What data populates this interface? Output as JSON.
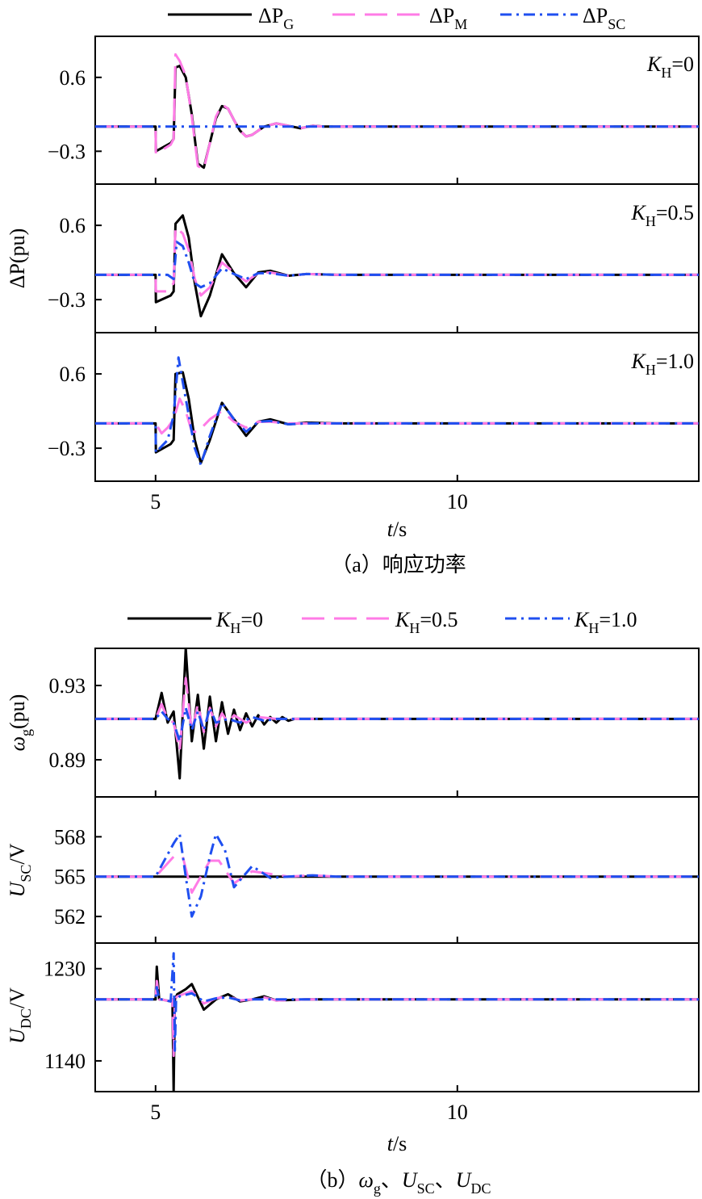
{
  "figure_a": {
    "caption": "（a）响应功率",
    "xlabel": "t/s",
    "ylabel": "ΔP(pu)",
    "legend": [
      {
        "name": "ΔP_G",
        "color": "#000000",
        "dash": "solid"
      },
      {
        "name": "ΔP_M",
        "color": "#ff7be6",
        "dash": "dash"
      },
      {
        "name": "ΔP_SC",
        "color": "#1f4ff0",
        "dash": "dashdot"
      }
    ],
    "panels": [
      {
        "annotation": "K_H=0",
        "yticks": [
          "0.6",
          "−0.3"
        ]
      },
      {
        "annotation": "K_H=0.5",
        "yticks": [
          "0.6",
          "−0.3"
        ]
      },
      {
        "annotation": "K_H=1.0",
        "yticks": [
          "0.6",
          "−0.3"
        ]
      }
    ],
    "xticks": [
      "5",
      "10"
    ]
  },
  "figure_b": {
    "caption": "（b）ω_g、U_SC、U_DC",
    "xlabel": "t/s",
    "legend": [
      {
        "name": "K_H=0",
        "color": "#000000",
        "dash": "solid"
      },
      {
        "name": "K_H=0.5",
        "color": "#ff7be6",
        "dash": "dash"
      },
      {
        "name": "K_H=1.0",
        "color": "#1f4ff0",
        "dash": "dashdot"
      }
    ],
    "panels": [
      {
        "ylabel": "ω_g(pu)",
        "yticks": [
          "0.93",
          "0.89"
        ]
      },
      {
        "ylabel": "U_SC/V",
        "yticks": [
          "568",
          "565",
          "562"
        ]
      },
      {
        "ylabel": "U_DC/V",
        "yticks": [
          "1230",
          "1140"
        ]
      }
    ],
    "xticks": [
      "5",
      "10"
    ]
  },
  "chart_data": [
    {
      "type": "line",
      "xlim": [
        4,
        14
      ],
      "xlabel": "t/s",
      "ylabel": "ΔP(pu)",
      "subplots": [
        {
          "annotation": "K_H=0",
          "ylim": [
            -0.7,
            1.1
          ],
          "series": [
            {
              "name": "ΔP_G",
              "x": [
                4,
                5,
                5.005,
                5.25,
                5.3,
                5.33,
                5.4,
                5.5,
                5.6,
                5.7,
                5.8,
                5.9,
                6.0,
                6.1,
                6.2,
                6.3,
                6.4,
                6.5,
                6.6,
                6.8,
                7.0,
                7.2,
                7.4,
                7.6,
                7.8,
                8,
                9,
                14
              ],
              "y": [
                0,
                0,
                -0.3,
                -0.2,
                -0.15,
                0.72,
                0.74,
                0.6,
                0.15,
                -0.45,
                -0.5,
                -0.2,
                0.1,
                0.25,
                0.22,
                0.08,
                -0.05,
                -0.12,
                -0.1,
                0,
                0.04,
                0.01,
                -0.02,
                0.01,
                0,
                0,
                0,
                0
              ]
            },
            {
              "name": "ΔP_M",
              "x": [
                4,
                5,
                5.005,
                5.25,
                5.3,
                5.33,
                5.4,
                5.5,
                5.6,
                5.7,
                5.8,
                5.9,
                6.0,
                6.1,
                6.2,
                6.3,
                6.4,
                6.5,
                6.6,
                6.8,
                7.0,
                7.2,
                7.4,
                7.6,
                7.8,
                8,
                9,
                14
              ],
              "y": [
                0,
                0,
                -0.33,
                -0.22,
                -0.15,
                0.88,
                0.8,
                0.62,
                0.12,
                -0.48,
                -0.52,
                -0.2,
                0.12,
                0.27,
                0.22,
                0.08,
                -0.05,
                -0.12,
                -0.1,
                0,
                0.04,
                0.01,
                -0.02,
                0.01,
                0,
                0,
                0,
                0
              ]
            },
            {
              "name": "ΔP_SC",
              "x": [
                4,
                6,
                7,
                8,
                9,
                14
              ],
              "y": [
                0,
                0,
                0,
                0,
                0,
                0
              ]
            }
          ]
        },
        {
          "annotation": "K_H=0.5",
          "ylim": [
            -0.7,
            1.1
          ],
          "series": [
            {
              "name": "ΔP_G",
              "x": [
                4,
                5,
                5.005,
                5.25,
                5.3,
                5.33,
                5.45,
                5.55,
                5.65,
                5.75,
                5.9,
                6.1,
                6.3,
                6.5,
                6.7,
                6.9,
                7.2,
                7.5,
                8,
                14
              ],
              "y": [
                0,
                0,
                -0.33,
                -0.25,
                -0.2,
                0.62,
                0.72,
                0.45,
                -0.1,
                -0.5,
                -0.25,
                0.25,
                0.02,
                -0.15,
                0.03,
                0.05,
                -0.01,
                0.01,
                0,
                0
              ]
            },
            {
              "name": "ΔP_M",
              "x": [
                4,
                5,
                5.005,
                5.2,
                5.3,
                5.33,
                5.45,
                5.55,
                5.65,
                5.75,
                5.9,
                6.1,
                6.3,
                6.5,
                6.7,
                6.9,
                7.2,
                7.5,
                8,
                14
              ],
              "y": [
                0,
                0,
                -0.2,
                -0.2,
                -0.1,
                0.58,
                0.5,
                0.3,
                -0.05,
                -0.25,
                -0.15,
                0.15,
                0.03,
                -0.08,
                0.02,
                0.03,
                -0.01,
                0.01,
                0,
                0
              ]
            },
            {
              "name": "ΔP_SC",
              "x": [
                4,
                5.2,
                5.3,
                5.35,
                5.45,
                5.55,
                5.65,
                5.75,
                5.9,
                6.1,
                6.3,
                6.5,
                6.7,
                6.9,
                7.2,
                7.5,
                8,
                14
              ],
              "y": [
                0,
                0,
                -0.05,
                0.4,
                0.35,
                0.15,
                -0.1,
                -0.15,
                -0.1,
                0.08,
                0.01,
                -0.05,
                0.02,
                0.02,
                -0.01,
                0.01,
                0,
                0
              ]
            }
          ]
        },
        {
          "annotation": "K_H=1.0",
          "ylim": [
            -0.7,
            1.1
          ],
          "series": [
            {
              "name": "ΔP_G",
              "x": [
                4,
                5,
                5.005,
                5.25,
                5.3,
                5.33,
                5.45,
                5.55,
                5.65,
                5.75,
                5.9,
                6.1,
                6.3,
                6.5,
                6.7,
                6.9,
                7.2,
                7.5,
                8,
                14
              ],
              "y": [
                0,
                0,
                -0.35,
                -0.25,
                -0.2,
                0.6,
                0.62,
                0.3,
                -0.2,
                -0.48,
                -0.2,
                0.25,
                0.05,
                -0.15,
                0.02,
                0.05,
                -0.01,
                0.01,
                0,
                0
              ]
            },
            {
              "name": "ΔP_M",
              "x": [
                4,
                5,
                5.1,
                5.2,
                5.3,
                5.4,
                5.5,
                5.6,
                5.7,
                5.9,
                6.1,
                6.3,
                6.5,
                6.7,
                6.9,
                7.2,
                7.5,
                8,
                14
              ],
              "y": [
                0,
                0,
                -0.12,
                -0.05,
                0.05,
                0.3,
                0.15,
                -0.1,
                -0.1,
                0.05,
                0.15,
                0.02,
                -0.05,
                0.02,
                0.02,
                0,
                0,
                0,
                0
              ]
            },
            {
              "name": "ΔP_SC",
              "x": [
                4,
                5,
                5.005,
                5.2,
                5.3,
                5.38,
                5.45,
                5.55,
                5.65,
                5.75,
                5.9,
                6.1,
                6.3,
                6.5,
                6.7,
                6.9,
                7.2,
                7.5,
                8,
                14
              ],
              "y": [
                0,
                0,
                -0.35,
                -0.2,
                0.1,
                0.8,
                0.5,
                0.1,
                -0.3,
                -0.5,
                -0.15,
                0.25,
                0.05,
                -0.1,
                0.02,
                0.03,
                -0.01,
                0,
                0,
                0
              ]
            }
          ]
        }
      ]
    },
    {
      "type": "line",
      "xlim": [
        4,
        14
      ],
      "xlabel": "t/s",
      "subplots": [
        {
          "ylabel": "ω_g(pu)",
          "ylim": [
            0.87,
            0.95
          ],
          "series": [
            {
              "name": "K_H=0",
              "x": [
                4,
                5,
                5.1,
                5.2,
                5.3,
                5.4,
                5.5,
                5.6,
                5.7,
                5.8,
                5.9,
                6.0,
                6.1,
                6.2,
                6.3,
                6.4,
                6.5,
                6.6,
                6.7,
                6.8,
                6.9,
                7.0,
                7.1,
                7.2,
                7.3,
                7.5,
                8,
                14
              ],
              "y": [
                0.912,
                0.912,
                0.926,
                0.91,
                0.916,
                0.88,
                0.95,
                0.9,
                0.925,
                0.896,
                0.924,
                0.9,
                0.921,
                0.904,
                0.917,
                0.906,
                0.915,
                0.908,
                0.914,
                0.909,
                0.913,
                0.91,
                0.913,
                0.911,
                0.912,
                0.912,
                0.912,
                0.912
              ]
            },
            {
              "name": "K_H=0.5",
              "x": [
                4,
                5,
                5.1,
                5.2,
                5.3,
                5.4,
                5.5,
                5.6,
                5.7,
                5.8,
                5.9,
                6.0,
                6.1,
                6.2,
                6.3,
                6.5,
                6.7,
                7.0,
                7.5,
                14
              ],
              "y": [
                0.912,
                0.912,
                0.92,
                0.912,
                0.91,
                0.895,
                0.934,
                0.905,
                0.92,
                0.905,
                0.918,
                0.908,
                0.915,
                0.91,
                0.914,
                0.91,
                0.913,
                0.912,
                0.912,
                0.912
              ]
            },
            {
              "name": "K_H=1.0",
              "x": [
                4,
                5,
                5.1,
                5.2,
                5.3,
                5.4,
                5.5,
                5.6,
                5.7,
                5.8,
                5.9,
                6.0,
                6.2,
                6.4,
                6.6,
                6.8,
                7.0,
                7.5,
                14
              ],
              "y": [
                0.912,
                0.912,
                0.916,
                0.912,
                0.91,
                0.9,
                0.918,
                0.906,
                0.916,
                0.906,
                0.918,
                0.91,
                0.912,
                0.91,
                0.913,
                0.911,
                0.912,
                0.912,
                0.912
              ]
            }
          ]
        },
        {
          "ylabel": "U_SC/V",
          "ylim": [
            560,
            571
          ],
          "series": [
            {
              "name": "K_H=0",
              "x": [
                4,
                14
              ],
              "y": [
                565,
                565
              ]
            },
            {
              "name": "K_H=0.5",
              "x": [
                4,
                5,
                5.3,
                5.45,
                5.6,
                5.75,
                5.9,
                6.05,
                6.3,
                6.6,
                6.9,
                7.2,
                7.6,
                8,
                14
              ],
              "y": [
                565,
                565,
                566.5,
                566.5,
                563.8,
                565,
                566.2,
                566.2,
                564.5,
                565.4,
                565.2,
                565,
                565.1,
                565,
                565
              ]
            },
            {
              "name": "K_H=1.0",
              "x": [
                4,
                5,
                5.3,
                5.4,
                5.5,
                5.6,
                5.75,
                5.9,
                6.0,
                6.15,
                6.3,
                6.6,
                6.9,
                7.2,
                7.6,
                8,
                14
              ],
              "y": [
                565,
                565,
                567.5,
                568.2,
                565,
                562,
                563.5,
                566.5,
                568.2,
                567,
                564.2,
                565.8,
                564.9,
                565,
                565.1,
                565,
                565
              ]
            }
          ]
        },
        {
          "ylabel": "U_DC/V",
          "ylim": [
            1110,
            1255
          ],
          "series": [
            {
              "name": "K_H=0",
              "x": [
                4,
                5,
                5.02,
                5.06,
                5.1,
                5.25,
                5.28,
                5.3,
                5.32,
                5.36,
                5.5,
                5.6,
                5.8,
                6.0,
                6.2,
                6.4,
                6.6,
                6.8,
                7.0,
                7.5,
                8,
                14
              ],
              "y": [
                1200,
                1200,
                1232,
                1200,
                1200,
                1198,
                1200,
                1110,
                1200,
                1205,
                1210,
                1215,
                1190,
                1200,
                1205,
                1198,
                1200,
                1203,
                1199,
                1200,
                1200,
                1200
              ]
            },
            {
              "name": "K_H=0.5",
              "x": [
                4,
                5,
                5.02,
                5.06,
                5.1,
                5.25,
                5.28,
                5.3,
                5.32,
                5.36,
                5.6,
                5.8,
                6.0,
                6.2,
                6.4,
                6.6,
                6.8,
                7.0,
                7.5,
                14
              ],
              "y": [
                1200,
                1200,
                1218,
                1200,
                1200,
                1198,
                1200,
                1145,
                1200,
                1203,
                1208,
                1196,
                1201,
                1203,
                1199,
                1200,
                1202,
                1199,
                1200,
                1200
              ]
            },
            {
              "name": "K_H=1.0",
              "x": [
                4,
                5,
                5.02,
                5.06,
                5.1,
                5.25,
                5.3,
                5.32,
                5.34,
                5.4,
                5.6,
                5.8,
                6.0,
                6.2,
                6.4,
                6.6,
                7.0,
                14
              ],
              "y": [
                1200,
                1200,
                1212,
                1200,
                1200,
                1198,
                1245,
                1150,
                1200,
                1203,
                1206,
                1198,
                1201,
                1202,
                1199,
                1200,
                1200,
                1200
              ]
            }
          ]
        }
      ]
    }
  ]
}
